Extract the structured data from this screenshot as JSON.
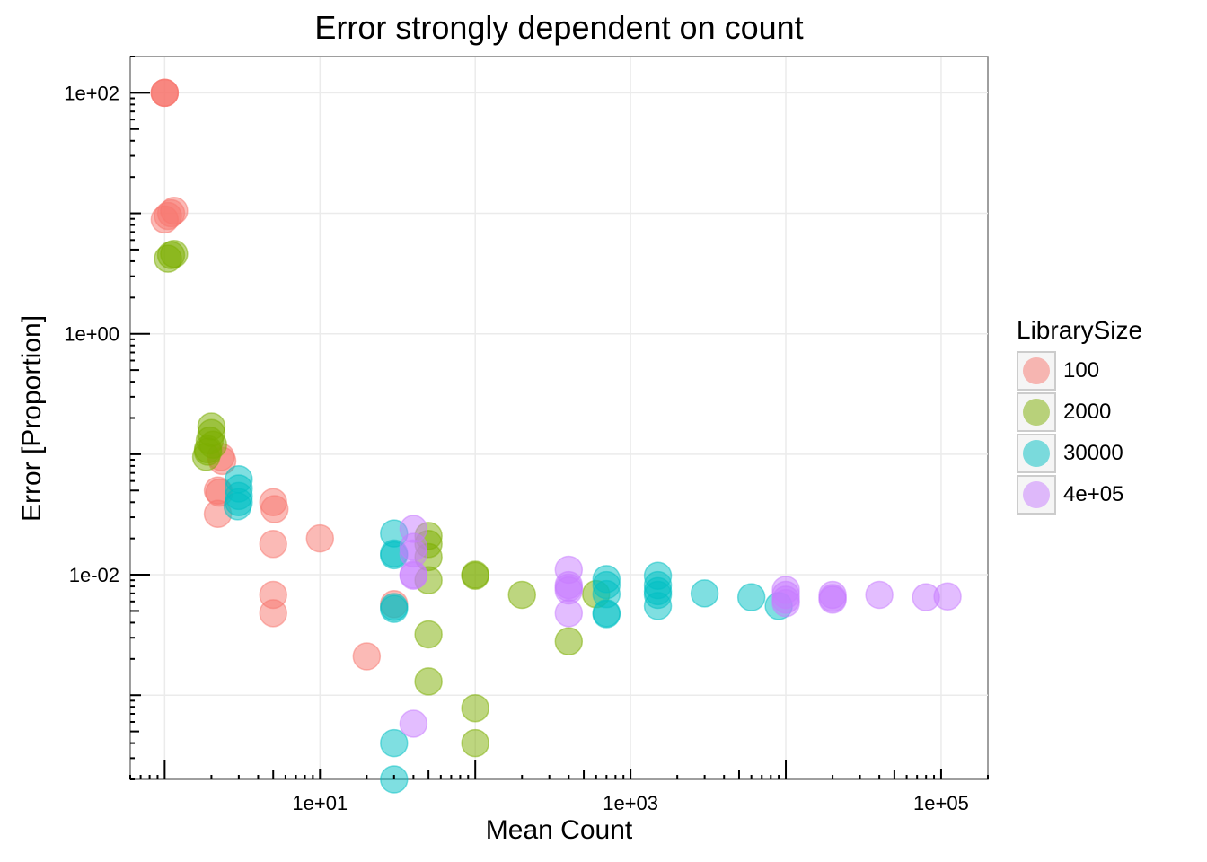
{
  "chart_data": {
    "type": "scatter",
    "title": "Error strongly dependent on count",
    "xlabel": "Mean Count",
    "ylabel": "Error [Proportion]",
    "x_scale": "log10",
    "y_scale": "log10",
    "xlim": [
      0.6,
      200000
    ],
    "ylim": [
      0.0002,
      200
    ],
    "x_ticks": [
      {
        "value": 10,
        "label": "1e+01"
      },
      {
        "value": 1000,
        "label": "1e+03"
      },
      {
        "value": 100000,
        "label": "1e+05"
      }
    ],
    "y_ticks": [
      {
        "value": 100,
        "label": "1e+02"
      },
      {
        "value": 1,
        "label": "1e+00"
      },
      {
        "value": 0.01,
        "label": "1e-02"
      }
    ],
    "grid": true,
    "legend": {
      "title": "LibrarySize",
      "position": "right"
    },
    "series": [
      {
        "name": "100",
        "color": "#F8766D",
        "points": [
          [
            1.0,
            100
          ],
          [
            1.0,
            100
          ],
          [
            1.0,
            100
          ],
          [
            1.0,
            8.9
          ],
          [
            1.05,
            9.5
          ],
          [
            1.1,
            10.0
          ],
          [
            1.15,
            10.5
          ],
          [
            2.3,
            0.095
          ],
          [
            2.35,
            0.088
          ],
          [
            2.2,
            0.05
          ],
          [
            2.25,
            0.048
          ],
          [
            2.2,
            0.032
          ],
          [
            5.0,
            0.04
          ],
          [
            5.1,
            0.035
          ],
          [
            5.0,
            0.018
          ],
          [
            5.0,
            0.0068
          ],
          [
            5.0,
            0.0048
          ],
          [
            10.0,
            0.02
          ],
          [
            20.0,
            0.0021
          ],
          [
            30.0,
            0.0057
          ]
        ]
      },
      {
        "name": "2000",
        "color": "#7CAE00",
        "points": [
          [
            1.05,
            4.2
          ],
          [
            1.1,
            4.5
          ],
          [
            1.15,
            4.6
          ],
          [
            2.0,
            0.17
          ],
          [
            1.95,
            0.13
          ],
          [
            1.9,
            0.11
          ],
          [
            2.0,
            0.15
          ],
          [
            2.05,
            0.12
          ],
          [
            1.85,
            0.095
          ],
          [
            1.9,
            0.105
          ],
          [
            50.0,
            0.021
          ],
          [
            50.0,
            0.018
          ],
          [
            50.0,
            0.014
          ],
          [
            50.0,
            0.009
          ],
          [
            50.0,
            0.0032
          ],
          [
            50.0,
            0.0013
          ],
          [
            100.0,
            0.01
          ],
          [
            100.0,
            0.0098
          ],
          [
            100.0,
            0.00078
          ],
          [
            100.0,
            0.0004
          ],
          [
            200.0,
            0.0068
          ],
          [
            400.0,
            0.0028
          ],
          [
            600.0,
            0.0069
          ]
        ]
      },
      {
        "name": "30000",
        "color": "#00BFC4",
        "points": [
          [
            3.0,
            0.062
          ],
          [
            3.0,
            0.052
          ],
          [
            3.0,
            0.045
          ],
          [
            3.0,
            0.04
          ],
          [
            2.95,
            0.037
          ],
          [
            30.0,
            0.022
          ],
          [
            30.0,
            0.015
          ],
          [
            30.0,
            0.0145
          ],
          [
            30.0,
            0.0054
          ],
          [
            30.0,
            0.0052
          ],
          [
            30.0,
            0.0004
          ],
          [
            30.0,
            0.0002
          ],
          [
            700.0,
            0.0092
          ],
          [
            700.0,
            0.0082
          ],
          [
            700.0,
            0.0069
          ],
          [
            700.0,
            0.0048
          ],
          [
            700.0,
            0.0047
          ],
          [
            1500.0,
            0.0098
          ],
          [
            1500.0,
            0.0082
          ],
          [
            1500.0,
            0.0073
          ],
          [
            1500.0,
            0.0068
          ],
          [
            1500.0,
            0.0055
          ],
          [
            3000.0,
            0.007
          ],
          [
            6000.0,
            0.0065
          ],
          [
            9000.0,
            0.0055
          ]
        ]
      },
      {
        "name": "4e+05",
        "color": "#C77CFF",
        "points": [
          [
            40.0,
            0.024
          ],
          [
            40.0,
            0.017
          ],
          [
            40.0,
            0.015
          ],
          [
            40.0,
            0.01
          ],
          [
            40.0,
            0.0098
          ],
          [
            40.0,
            0.00058
          ],
          [
            400.0,
            0.011
          ],
          [
            400.0,
            0.0082
          ],
          [
            400.0,
            0.0078
          ],
          [
            400.0,
            0.0074
          ],
          [
            400.0,
            0.0048
          ],
          [
            10000.0,
            0.0075
          ],
          [
            10000.0,
            0.0068
          ],
          [
            10000.0,
            0.0062
          ],
          [
            10000.0,
            0.0058
          ],
          [
            20000.0,
            0.0068
          ],
          [
            20000.0,
            0.0064
          ],
          [
            20000.0,
            0.0062
          ],
          [
            40000.0,
            0.0068
          ],
          [
            80000.0,
            0.0065
          ],
          [
            110000.0,
            0.0066
          ]
        ]
      }
    ]
  }
}
